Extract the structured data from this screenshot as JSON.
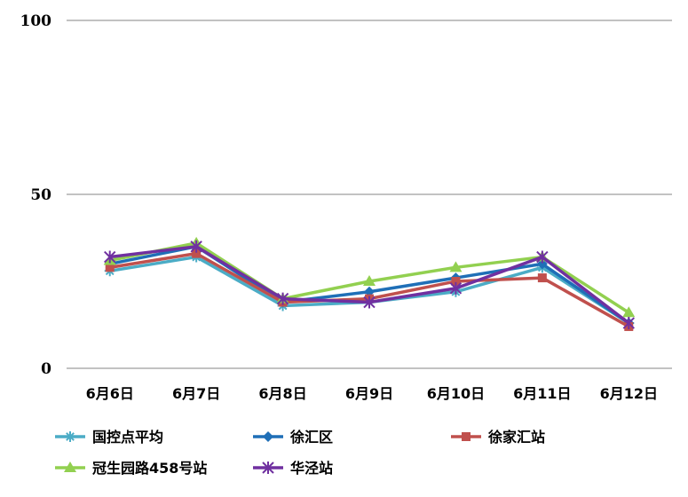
{
  "chart_data": {
    "type": "line",
    "categories": [
      "6月6日",
      "6月7日",
      "6月8日",
      "6月9日",
      "6月10日",
      "6月11日",
      "6月12日"
    ],
    "ylim": [
      0,
      100
    ],
    "yticks": [
      0,
      50,
      100
    ],
    "grid": true,
    "legend_position": "bottom",
    "series": [
      {
        "name": "国控点平均",
        "color": "#4BACC6",
        "marker": "asterisk",
        "values": [
          28,
          32,
          18,
          19,
          22,
          29,
          13
        ]
      },
      {
        "name": "徐汇区",
        "color": "#1F6FB7",
        "marker": "diamond",
        "values": [
          30,
          35,
          19,
          22,
          26,
          30,
          13
        ]
      },
      {
        "name": "徐家汇站",
        "color": "#C0504D",
        "marker": "square",
        "values": [
          29,
          33,
          19,
          20,
          25,
          26,
          12
        ]
      },
      {
        "name": "冠生园路458号站",
        "color": "#92D050",
        "marker": "triangle",
        "values": [
          31,
          36,
          20,
          25,
          29,
          32,
          16
        ]
      },
      {
        "name": "华泾站",
        "color": "#7030A0",
        "marker": "star",
        "values": [
          32,
          35,
          20,
          19,
          23,
          32,
          13
        ]
      }
    ]
  }
}
